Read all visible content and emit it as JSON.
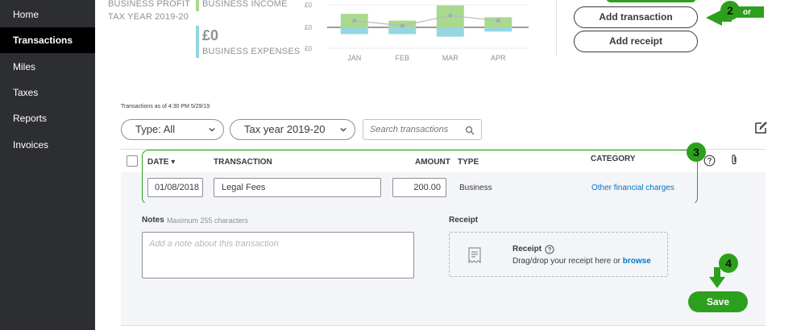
{
  "sidebar": {
    "items": [
      {
        "label": "Home"
      },
      {
        "label": "Transactions"
      },
      {
        "label": "Miles"
      },
      {
        "label": "Taxes"
      },
      {
        "label": "Reports"
      },
      {
        "label": "Invoices"
      }
    ],
    "active": "Transactions"
  },
  "summary": {
    "profit_label": "BUSINESS PROFIT",
    "tax_year": "TAX YEAR 2019-20",
    "income_label": "BUSINESS INCOME",
    "expenses_amount": "£0",
    "expenses_label": "BUSINESS EXPENSES"
  },
  "chart_data": {
    "type": "bar",
    "categories": [
      "JAN",
      "FEB",
      "MAR",
      "APR"
    ],
    "y_tick_labels": [
      "£0",
      "£0",
      "£0"
    ],
    "series": [
      {
        "values": [
          16,
          8,
          26,
          12
        ],
        "color": "#a9d98f"
      },
      {
        "values": [
          -8,
          -8,
          -11,
          -5
        ],
        "color": "#96d5e1"
      }
    ],
    "line": {
      "values": [
        8,
        2,
        14,
        8
      ],
      "color": "#b9b9c3"
    },
    "ylim": [
      -15,
      28
    ]
  },
  "actions": {
    "add_transaction": "Add transaction",
    "add_receipt": "Add receipt",
    "or_label": "or"
  },
  "markers": {
    "m2": "2",
    "m3": "3",
    "m4": "4"
  },
  "filters": {
    "as_of": "Transactions as of 4:30 PM 5/29/19",
    "type": "Type: All",
    "tax_year": "Tax year 2019-20",
    "search_placeholder": "Search transactions"
  },
  "table": {
    "headers": {
      "date": "DATE ▾",
      "transaction": "TRANSACTION",
      "amount": "AMOUNT",
      "type": "TYPE",
      "category": "CATEGORY"
    },
    "row": {
      "date": "01/08/2018",
      "transaction": "Legal Fees",
      "amount": "200.00",
      "type": "Business",
      "category": "Other financial charges"
    }
  },
  "detail": {
    "notes_label": "Notes",
    "notes_hint": "Maximum 255 characters",
    "notes_placeholder": "Add a note about this transaction",
    "receipt_label": "Receipt",
    "receipt_title": "Receipt",
    "receipt_text": "Drag/drop your receipt here or",
    "browse_link": "browse"
  },
  "save_label": "Save",
  "colors": {
    "accent": "#2ca01c",
    "link": "#0077c5",
    "sidebar": "#2d2e31"
  }
}
